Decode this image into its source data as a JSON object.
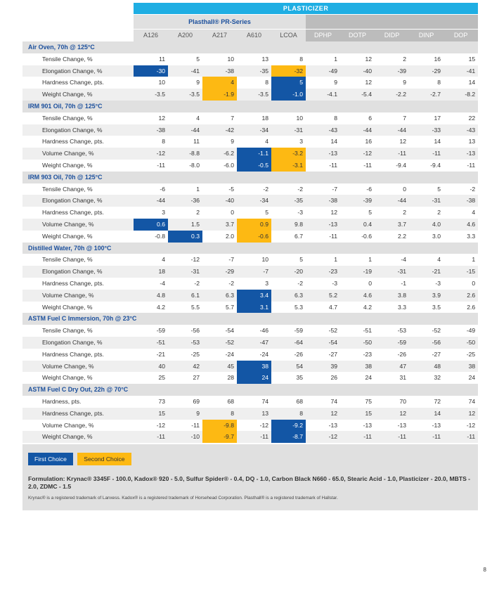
{
  "header": {
    "title": "PLASTICIZER",
    "series": "Plasthall® PR-Series"
  },
  "columns": [
    "A126",
    "A200",
    "A217",
    "A610",
    "LCOA",
    "DPHP",
    "DOTP",
    "DIDP",
    "DINP",
    "DOP"
  ],
  "sections": [
    {
      "title": "Air Oven, 70h @ 125°C",
      "rows": [
        {
          "label": "Tensile Change, %",
          "values": [
            "11",
            "5",
            "10",
            "13",
            "8",
            "1",
            "12",
            "2",
            "16",
            "15"
          ],
          "marks": {}
        },
        {
          "label": "Elongation Change, %",
          "values": [
            "-30",
            "-41",
            "-38",
            "-35",
            "-32",
            "-49",
            "-40",
            "-39",
            "-29",
            "-41"
          ],
          "marks": {
            "0": "b",
            "4": "y"
          }
        },
        {
          "label": "Hardness Change, pts.",
          "values": [
            "10",
            "9",
            "4",
            "8",
            "5",
            "9",
            "12",
            "9",
            "8",
            "14"
          ],
          "marks": {
            "2": "y",
            "4": "b"
          }
        },
        {
          "label": "Weight Change, %",
          "values": [
            "-3.5",
            "-3.5",
            "-1.9",
            "-3.5",
            "-1.0",
            "-4.1",
            "-5.4",
            "-2.2",
            "-2.7",
            "-8.2"
          ],
          "marks": {
            "2": "y",
            "4": "b"
          }
        }
      ]
    },
    {
      "title": "IRM 901 Oil, 70h @ 125°C",
      "rows": [
        {
          "label": "Tensile Change, %",
          "values": [
            "12",
            "4",
            "7",
            "18",
            "10",
            "8",
            "6",
            "7",
            "17",
            "22"
          ],
          "marks": {}
        },
        {
          "label": "Elongation Change, %",
          "values": [
            "-38",
            "-44",
            "-42",
            "-34",
            "-31",
            "-43",
            "-44",
            "-44",
            "-33",
            "-43"
          ],
          "marks": {}
        },
        {
          "label": "Hardness Change, pts.",
          "values": [
            "8",
            "11",
            "9",
            "4",
            "3",
            "14",
            "16",
            "12",
            "14",
            "13"
          ],
          "marks": {}
        },
        {
          "label": "Volume Change, %",
          "values": [
            "-12",
            "-8.8",
            "-6.2",
            "-1.1",
            "-3.2",
            "-13",
            "-12",
            "-11",
            "-11",
            "-13"
          ],
          "marks": {
            "3": "b",
            "4": "y"
          }
        },
        {
          "label": "Weight Change, %",
          "values": [
            "-11",
            "-8.0",
            "-6.0",
            "-0.5",
            "-3.1",
            "-11",
            "-11",
            "-9.4",
            "-9.4",
            "-11"
          ],
          "marks": {
            "3": "b",
            "4": "y"
          }
        }
      ]
    },
    {
      "title": "IRM 903 Oil, 70h @ 125°C",
      "rows": [
        {
          "label": "Tensile Change, %",
          "values": [
            "-6",
            "1",
            "-5",
            "-2",
            "-2",
            "-7",
            "-6",
            "0",
            "5",
            "-2"
          ],
          "marks": {}
        },
        {
          "label": "Elongation Change, %",
          "values": [
            "-44",
            "-36",
            "-40",
            "-34",
            "-35",
            "-38",
            "-39",
            "-44",
            "-31",
            "-38"
          ],
          "marks": {}
        },
        {
          "label": "Hardness Change, pts.",
          "values": [
            "3",
            "2",
            "0",
            "5",
            "-3",
            "12",
            "5",
            "2",
            "2",
            "4"
          ],
          "marks": {}
        },
        {
          "label": "Volume Change, %",
          "values": [
            "0.6",
            "1.5",
            "3.7",
            "0.9",
            "9.8",
            "-13",
            "0.4",
            "3.7",
            "4.0",
            "4.6"
          ],
          "marks": {
            "0": "b",
            "3": "y"
          }
        },
        {
          "label": "Weight Change, %",
          "values": [
            "-0.8",
            "0.3",
            "2.0",
            "-0.6",
            "6.7",
            "-11",
            "-0.6",
            "2.2",
            "3.0",
            "3.3"
          ],
          "marks": {
            "1": "b",
            "3": "y"
          }
        }
      ]
    },
    {
      "title": "Distilled Water, 70h @ 100°C",
      "rows": [
        {
          "label": "Tensile Change, %",
          "values": [
            "4",
            "-12",
            "-7",
            "10",
            "5",
            "1",
            "1",
            "-4",
            "4",
            "1"
          ],
          "marks": {}
        },
        {
          "label": "Elongation Change, %",
          "values": [
            "18",
            "-31",
            "-29",
            "-7",
            "-20",
            "-23",
            "-19",
            "-31",
            "-21",
            "-15"
          ],
          "marks": {}
        },
        {
          "label": "Hardness Change, pts.",
          "values": [
            "-4",
            "-2",
            "-2",
            "3",
            "-2",
            "-3",
            "0",
            "-1",
            "-3",
            "0"
          ],
          "marks": {}
        },
        {
          "label": "Volume Change, %",
          "values": [
            "4.8",
            "6.1",
            "6.3",
            "3.4",
            "6.3",
            "5.2",
            "4.6",
            "3.8",
            "3.9",
            "2.6"
          ],
          "marks": {
            "3": "b"
          }
        },
        {
          "label": "Weight Change, %",
          "values": [
            "4.2",
            "5.5",
            "5.7",
            "3.1",
            "5.3",
            "4.7",
            "4.2",
            "3.3",
            "3.5",
            "2.6"
          ],
          "marks": {
            "3": "b"
          }
        }
      ]
    },
    {
      "title": "ASTM Fuel C Immersion, 70h @ 23°C",
      "rows": [
        {
          "label": "Tensile Change, %",
          "values": [
            "-59",
            "-56",
            "-54",
            "-46",
            "-59",
            "-52",
            "-51",
            "-53",
            "-52",
            "-49"
          ],
          "marks": {}
        },
        {
          "label": "Elongation Change, %",
          "values": [
            "-51",
            "-53",
            "-52",
            "-47",
            "-64",
            "-54",
            "-50",
            "-59",
            "-56",
            "-50"
          ],
          "marks": {}
        },
        {
          "label": "Hardness Change, pts.",
          "values": [
            "-21",
            "-25",
            "-24",
            "-24",
            "-26",
            "-27",
            "-23",
            "-26",
            "-27",
            "-25"
          ],
          "marks": {}
        },
        {
          "label": "Volume Change, %",
          "values": [
            "40",
            "42",
            "45",
            "38",
            "54",
            "39",
            "38",
            "47",
            "48",
            "38"
          ],
          "marks": {
            "3": "b"
          }
        },
        {
          "label": "Weight Change, %",
          "values": [
            "25",
            "27",
            "28",
            "24",
            "35",
            "26",
            "24",
            "31",
            "32",
            "24"
          ],
          "marks": {
            "3": "b"
          }
        }
      ]
    },
    {
      "title": "ASTM Fuel C Dry Out, 22h @ 70°C",
      "rows": [
        {
          "label": "Hardness, pts.",
          "values": [
            "73",
            "69",
            "68",
            "74",
            "68",
            "74",
            "75",
            "70",
            "72",
            "74"
          ],
          "marks": {}
        },
        {
          "label": "Hardness Change, pts.",
          "values": [
            "15",
            "9",
            "8",
            "13",
            "8",
            "12",
            "15",
            "12",
            "14",
            "12"
          ],
          "marks": {}
        },
        {
          "label": "Volume Change, %",
          "values": [
            "-12",
            "-11",
            "-9.8",
            "-12",
            "-9.2",
            "-13",
            "-13",
            "-13",
            "-13",
            "-12"
          ],
          "marks": {
            "2": "y",
            "4": "b"
          }
        },
        {
          "label": "Weight Change, %",
          "values": [
            "-11",
            "-10",
            "-9.7",
            "-11",
            "-8.7",
            "-12",
            "-11",
            "-11",
            "-11",
            "-11"
          ],
          "marks": {
            "2": "y",
            "4": "b"
          }
        }
      ]
    }
  ],
  "legend": {
    "first": "First Choice",
    "second": "Second Choice"
  },
  "formulation": "Formulation: Krynac® 3345F - 100.0, Kadox® 920 - 5.0, Sulfur Spider® - 0.4, DQ - 1.0, Carbon Black N660 - 65.0, Stearic Acid - 1.0, Plasticizer - 20.0, MBTS - 2.0, ZDMC - 1.5",
  "trademark": "Krynac® is a registered trademark of Lanxess. Kadox® is a registered trademark of Horsehead Corporation. Plasthall® is a registered trademark of Hallstar.",
  "page_number": "8",
  "colors": {
    "first_choice": "#1356a5",
    "second_choice": "#fdb913",
    "header": "#1faee3",
    "section_text": "#1b4f9c"
  }
}
